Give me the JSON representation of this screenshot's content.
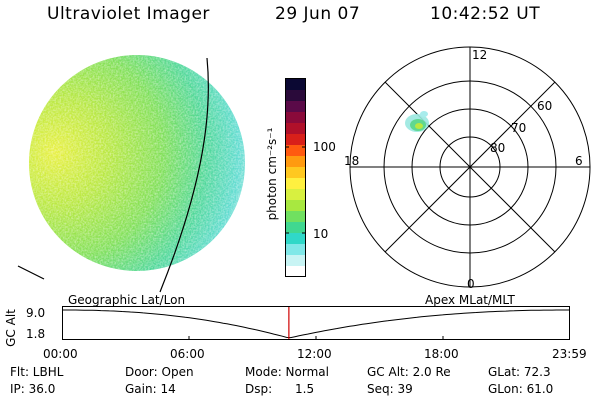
{
  "header": {
    "title": "Ultraviolet Imager",
    "date": "29 Jun 07",
    "time": "10:42:52 UT"
  },
  "colorbar": {
    "unit_label": "photon cm⁻²s⁻¹",
    "ticks": [
      "100",
      "10"
    ],
    "colors": [
      "#0b0833",
      "#2a0a3a",
      "#5a0a48",
      "#8a0a3a",
      "#b0102a",
      "#d8201a",
      "#ff5a10",
      "#ff9a10",
      "#ffc820",
      "#fff040",
      "#d8f040",
      "#a8e840",
      "#70e060",
      "#40d890",
      "#30d8c8",
      "#80e8e8",
      "#c8f4f4",
      "#ffffff"
    ]
  },
  "polar_plot": {
    "mlt_labels": [
      "12",
      "18",
      "6",
      "0"
    ],
    "lat_labels": [
      "60",
      "70",
      "80"
    ]
  },
  "timeline": {
    "left_label": "Geographic Lat/Lon",
    "right_label": "Apex MLat/MLT",
    "axis_label": "GC Alt",
    "alt_max": "9.0",
    "alt_min": "1.8",
    "time_ticks": [
      "00:00",
      "06:00",
      "12:00",
      "18:00",
      "23:59"
    ],
    "current_time_fraction": 0.4464,
    "marker_color": "#d00000"
  },
  "info": {
    "row1": {
      "flt": "Flt: LBHL",
      "door": "Door: Open",
      "mode": "Mode: Normal",
      "gcalt": "GC Alt: 2.0 Re",
      "glat": "GLat: 72.3"
    },
    "row2": {
      "ip": "IP: 36.0",
      "gain": "Gain: 14",
      "dsp": "Dsp:      1.5",
      "seq": "Seq: 39",
      "glon": "GLon: 61.0"
    }
  }
}
